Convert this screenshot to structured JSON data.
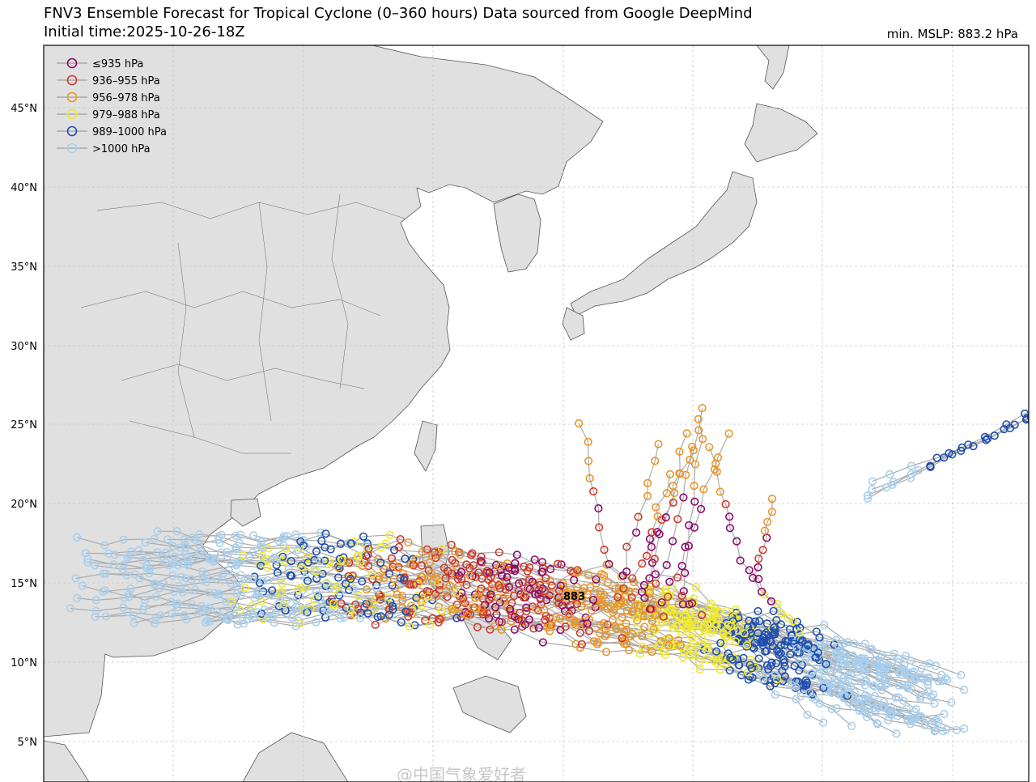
{
  "title": "FNV3 Ensemble Forecast for Tropical Cyclone (0–360 hours) Data sourced from Google DeepMind",
  "subtitle": "Initial time:2025-10-26-18Z",
  "min_mslp": "min. MSLP: 883.2 hPa",
  "peak_label": "883",
  "watermark": "@中国气象爱好者",
  "legend": [
    {
      "label": "≤935 hPa",
      "color": "#8b0a6b"
    },
    {
      "label": "936–955 hPa",
      "color": "#d03a2a"
    },
    {
      "label": "956–978 hPa",
      "color": "#e8962a"
    },
    {
      "label": "979–988 hPa",
      "color": "#f0e830"
    },
    {
      "label": "989–1000 hPa",
      "color": "#1f4fb0"
    },
    {
      "label": ">1000 hPa",
      "color": "#a8cfee"
    }
  ],
  "lat_labels": [
    "45°N",
    "40°N",
    "35°N",
    "30°N",
    "25°N",
    "20°N",
    "15°N",
    "10°N",
    "5°N"
  ],
  "colors": {
    "land": "#e0e0e0",
    "coast": "#555555",
    "track": "#aaaaaa",
    "grid": "#c8c8c8"
  }
}
